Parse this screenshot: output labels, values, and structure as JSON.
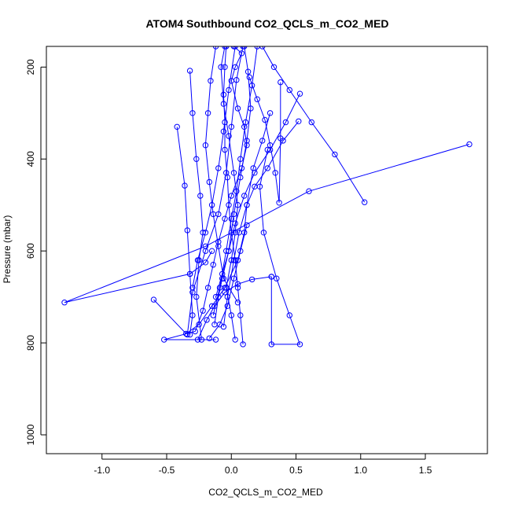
{
  "chart_data": {
    "type": "line",
    "title": "ATOM4 Southbound CO2_QCLS_m_CO2_MED",
    "xlabel": "CO2_QCLS_m_CO2_MED",
    "ylabel": "Pressure (mbar)",
    "xlim": [
      -1.43,
      1.98
    ],
    "ylim": [
      1041,
      155
    ],
    "y_reversed": true,
    "x_ticks": [
      -1.0,
      -0.5,
      0.0,
      0.5,
      1.0,
      1.5
    ],
    "x_tick_labels": [
      "-1.0",
      "-0.5",
      "0.0",
      "0.5",
      "1.0",
      "1.5"
    ],
    "y_ticks": [
      200,
      400,
      600,
      800,
      1000
    ],
    "y_tick_labels": [
      "200",
      "400",
      "600",
      "800",
      "1000"
    ],
    "marker": "open-circle",
    "grid": false,
    "legend": "none",
    "colors": {
      "series": "#0000ff",
      "axes": "#000000",
      "background": "#ffffff"
    },
    "series": [
      {
        "values": [
          [
            0.02,
            155
          ],
          [
            0.08,
            170
          ],
          [
            0.03,
            200
          ],
          [
            0.0,
            230
          ],
          [
            0.05,
            290
          ],
          [
            0.1,
            330
          ],
          [
            0.12,
            370
          ],
          [
            0.08,
            420
          ],
          [
            0.0,
            480
          ],
          [
            -0.05,
            530
          ],
          [
            -0.1,
            580
          ],
          [
            -0.14,
            630
          ],
          [
            -0.18,
            680
          ],
          [
            -0.22,
            730
          ],
          [
            -0.28,
            775
          ],
          [
            -0.52,
            793
          ],
          [
            -0.12,
            793
          ]
        ]
      },
      {
        "values": [
          [
            -0.12,
            155
          ],
          [
            -0.16,
            230
          ],
          [
            -0.18,
            300
          ],
          [
            -0.2,
            370
          ],
          [
            -0.17,
            450
          ],
          [
            -0.14,
            520
          ],
          [
            -0.1,
            590
          ],
          [
            -0.06,
            660
          ],
          [
            0.05,
            712
          ]
        ]
      },
      {
        "values": [
          [
            0.09,
            155
          ],
          [
            0.04,
            228
          ],
          [
            0.0,
            330
          ],
          [
            -0.04,
            430
          ],
          [
            -0.1,
            520
          ],
          [
            -0.2,
            600
          ],
          [
            -0.3,
            690
          ],
          [
            -0.34,
            782
          ]
        ]
      },
      {
        "values": [
          [
            -0.42,
            330
          ],
          [
            -0.36,
            458
          ],
          [
            -0.34,
            555
          ],
          [
            -0.32,
            650
          ],
          [
            -0.3,
            740
          ],
          [
            -0.32,
            782
          ]
        ]
      },
      {
        "values": [
          [
            -0.32,
            208
          ],
          [
            -0.3,
            300
          ],
          [
            -0.27,
            400
          ],
          [
            -0.24,
            480
          ],
          [
            -0.22,
            560
          ],
          [
            -0.25,
            620
          ],
          [
            -0.27,
            700
          ],
          [
            -0.23,
            793
          ]
        ]
      },
      {
        "values": [
          [
            0.53,
            258
          ],
          [
            0.42,
            320
          ],
          [
            0.3,
            380
          ],
          [
            0.18,
            430
          ],
          [
            0.1,
            480
          ],
          [
            0.03,
            540
          ],
          [
            -0.02,
            600
          ],
          [
            -0.07,
            660
          ],
          [
            -0.1,
            700
          ],
          [
            -0.13,
            760
          ]
        ]
      },
      {
        "values": [
          [
            0.52,
            318
          ],
          [
            0.4,
            360
          ],
          [
            0.28,
            420
          ],
          [
            0.18,
            460
          ],
          [
            0.12,
            500
          ],
          [
            0.06,
            560
          ],
          [
            0.02,
            620
          ],
          [
            -0.03,
            700
          ],
          [
            -0.06,
            765
          ]
        ]
      },
      {
        "values": [
          [
            1.03,
            494
          ],
          [
            0.8,
            390
          ],
          [
            0.62,
            320
          ],
          [
            0.45,
            250
          ],
          [
            0.33,
            200
          ],
          [
            0.24,
            155
          ]
        ]
      },
      {
        "values": [
          [
            1.84,
            368
          ],
          [
            0.6,
            470
          ],
          [
            -0.2,
            590
          ],
          [
            -1.29,
            712
          ],
          [
            -0.32,
            650
          ],
          [
            -0.2,
            625
          ],
          [
            -0.15,
            600
          ]
        ]
      },
      {
        "values": [
          [
            -0.6,
            706
          ],
          [
            -0.35,
            780
          ],
          [
            -0.25,
            760
          ],
          [
            -0.15,
            720
          ],
          [
            -0.05,
            680
          ],
          [
            0.05,
            620
          ],
          [
            0.1,
            560
          ],
          [
            0.12,
            500
          ],
          [
            0.17,
            420
          ],
          [
            0.24,
            360
          ],
          [
            0.3,
            300
          ]
        ]
      },
      {
        "values": [
          [
            0.31,
            656
          ],
          [
            0.31,
            803
          ],
          [
            0.53,
            803
          ],
          [
            0.45,
            740
          ],
          [
            0.35,
            660
          ],
          [
            0.25,
            560
          ],
          [
            0.22,
            460
          ],
          [
            0.28,
            380
          ]
        ]
      },
      {
        "values": [
          [
            0.38,
            233
          ],
          [
            0.38,
            355
          ],
          [
            0.37,
            495
          ],
          [
            0.34,
            430
          ],
          [
            0.3,
            370
          ],
          [
            0.26,
            315
          ],
          [
            0.2,
            270
          ],
          [
            0.14,
            222
          ]
        ]
      },
      {
        "values": [
          [
            0.09,
            803
          ],
          [
            0.07,
            740
          ],
          [
            0.05,
            680
          ],
          [
            0.03,
            620
          ],
          [
            0.0,
            560
          ],
          [
            -0.02,
            500
          ],
          [
            -0.03,
            440
          ],
          [
            -0.05,
            380
          ],
          [
            -0.05,
            320
          ],
          [
            -0.06,
            260
          ],
          [
            -0.05,
            200
          ],
          [
            -0.04,
            155
          ]
        ]
      },
      {
        "values": [
          [
            0.31,
            656
          ],
          [
            0.16,
            662
          ],
          [
            0.05,
            672
          ],
          [
            -0.05,
            690
          ],
          [
            -0.13,
            720
          ],
          [
            -0.19,
            750
          ],
          [
            -0.26,
            793
          ]
        ]
      },
      {
        "values": [
          [
            0.12,
            544
          ],
          [
            0.07,
            600
          ],
          [
            0.02,
            660
          ],
          [
            -0.03,
            720
          ],
          [
            -0.09,
            760
          ],
          [
            -0.17,
            790
          ]
        ]
      },
      {
        "values": [
          [
            0.03,
            155
          ],
          [
            -0.02,
            250
          ],
          [
            -0.06,
            340
          ],
          [
            -0.1,
            420
          ],
          [
            -0.15,
            500
          ],
          [
            -0.2,
            560
          ],
          [
            -0.26,
            620
          ],
          [
            -0.3,
            680
          ]
        ]
      },
      {
        "values": [
          [
            0.1,
            155
          ],
          [
            0.13,
            210
          ],
          [
            0.15,
            290
          ],
          [
            0.12,
            360
          ],
          [
            0.07,
            440
          ],
          [
            0.02,
            520
          ],
          [
            -0.02,
            600
          ],
          [
            -0.07,
            650
          ],
          [
            -0.12,
            700
          ]
        ]
      },
      {
        "values": [
          [
            0.2,
            155
          ],
          [
            0.16,
            240
          ],
          [
            0.11,
            320
          ],
          [
            0.07,
            400
          ],
          [
            0.04,
            470
          ],
          [
            0.0,
            530
          ],
          [
            -0.04,
            600
          ],
          [
            -0.09,
            680
          ],
          [
            -0.14,
            740
          ]
        ]
      },
      {
        "values": [
          [
            -0.05,
            155
          ],
          [
            -0.08,
            200
          ],
          [
            -0.06,
            280
          ],
          [
            -0.02,
            350
          ],
          [
            0.02,
            430
          ],
          [
            0.05,
            500
          ],
          [
            0.03,
            560
          ],
          [
            0.0,
            620
          ],
          [
            -0.04,
            680
          ],
          [
            0.0,
            740
          ],
          [
            0.03,
            793
          ]
        ]
      }
    ]
  }
}
